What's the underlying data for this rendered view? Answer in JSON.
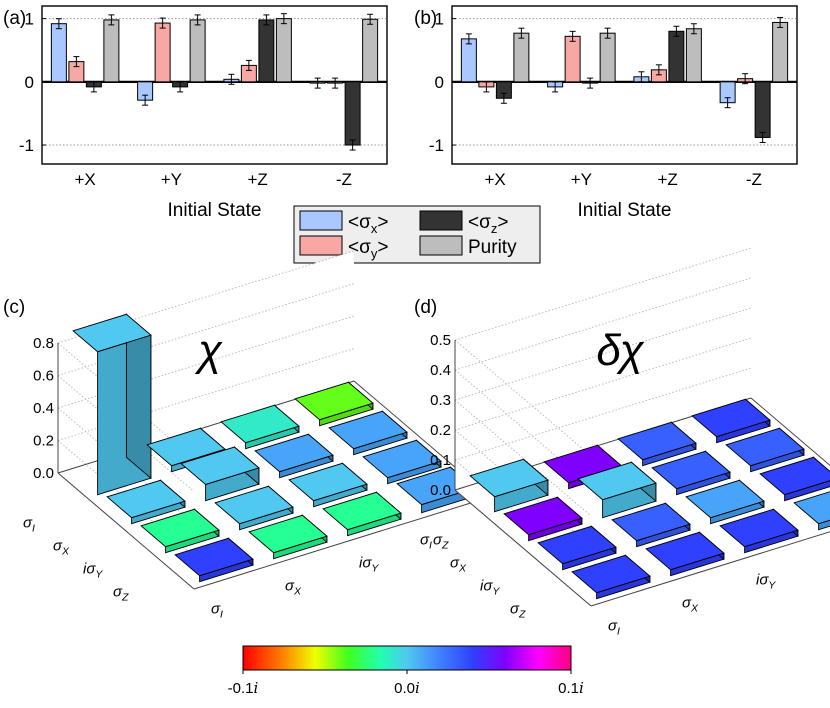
{
  "figure": {
    "panels": {
      "a": "(a)",
      "b": "(b)",
      "c": "(c)",
      "d": "(d)"
    },
    "legend": [
      {
        "key": "sx",
        "label": "<σx>",
        "base": "<σ",
        "sub": "x",
        "tail": ">",
        "color": "#a9c8ff"
      },
      {
        "key": "sz",
        "label": "<σz>",
        "base": "<σ",
        "sub": "z",
        "tail": ">",
        "color": "#333333"
      },
      {
        "key": "sy",
        "label": "<σy>",
        "base": "<σ",
        "sub": "y",
        "tail": ">",
        "color": "#f7a8a4"
      },
      {
        "key": "pur",
        "label": "Purity",
        "base": "Purity",
        "sub": "",
        "tail": "",
        "color": "#bdbdbd"
      }
    ]
  },
  "chart_data": [
    {
      "panel": "a",
      "type": "bar",
      "xlabel": "Initial State",
      "ylabel": "",
      "ylim": [
        -1.3,
        1.2
      ],
      "yticks": [
        "1",
        "0",
        "-1"
      ],
      "categories": [
        "+X",
        "+Y",
        "+Z",
        "-Z"
      ],
      "series": [
        {
          "name": "<σx>",
          "values": [
            0.92,
            -0.29,
            0.04,
            -0.02
          ]
        },
        {
          "name": "<σy>",
          "values": [
            0.32,
            0.93,
            0.26,
            -0.02
          ]
        },
        {
          "name": "<σz>",
          "values": [
            -0.08,
            -0.08,
            0.98,
            -1.0
          ]
        },
        {
          "name": "Purity",
          "values": [
            0.98,
            0.98,
            1.0,
            0.99
          ]
        }
      ]
    },
    {
      "panel": "b",
      "type": "bar",
      "xlabel": "Initial State",
      "ylabel": "",
      "ylim": [
        -1.3,
        1.2
      ],
      "yticks": [
        "1",
        "0",
        "-1"
      ],
      "categories": [
        "+X",
        "+Y",
        "+Z",
        "-Z"
      ],
      "series": [
        {
          "name": "<σx>",
          "values": [
            0.68,
            -0.08,
            0.08,
            -0.33
          ]
        },
        {
          "name": "<σy>",
          "values": [
            -0.08,
            0.72,
            0.19,
            0.05
          ]
        },
        {
          "name": "<σz>",
          "values": [
            -0.26,
            -0.02,
            0.8,
            -0.88
          ]
        },
        {
          "name": "Purity",
          "values": [
            0.77,
            0.77,
            0.84,
            0.94
          ]
        }
      ]
    },
    {
      "panel": "c",
      "type": "bar3d",
      "title": "χ",
      "zticks": [
        "0.8",
        "0.6",
        "0.4",
        "0.2",
        "0.0"
      ],
      "zlim": [
        0,
        0.8
      ],
      "row_labels": [
        "σI",
        "σX",
        "iσY",
        "σZ"
      ],
      "col_labels": [
        "σI",
        "σX",
        "iσY",
        "σZ"
      ],
      "heights": [
        [
          0.88,
          0.0,
          0.0,
          0.0
        ],
        [
          0.0,
          0.1,
          0.0,
          0.0
        ],
        [
          0.0,
          0.0,
          0.0,
          0.0
        ],
        [
          0.0,
          0.0,
          0.0,
          0.05
        ]
      ],
      "imag": [
        [
          0.0,
          0.0,
          -0.01,
          -0.04
        ],
        [
          0.0,
          0.0,
          0.01,
          0.01
        ],
        [
          -0.02,
          0.0,
          0.0,
          0.01
        ],
        [
          0.04,
          -0.02,
          -0.02,
          0.01
        ]
      ]
    },
    {
      "panel": "d",
      "type": "bar3d",
      "title": "δχ",
      "zticks": [
        "0.5",
        "0.4",
        "0.3",
        "0.2",
        "0.1",
        "0.0"
      ],
      "zlim": [
        0,
        0.5
      ],
      "row_labels": [
        "σI",
        "σX",
        "iσY",
        "σZ"
      ],
      "col_labels": [
        "σI",
        "σX",
        "iσY",
        "σZ"
      ],
      "heights": [
        [
          0.05,
          0.0,
          0.0,
          0.0
        ],
        [
          0.0,
          0.06,
          0.0,
          0.0
        ],
        [
          0.0,
          0.0,
          0.0,
          0.0
        ],
        [
          0.0,
          0.0,
          0.0,
          0.0
        ]
      ],
      "imag": [
        [
          0.0,
          0.06,
          0.03,
          0.04
        ],
        [
          0.06,
          0.0,
          0.03,
          0.03
        ],
        [
          0.04,
          0.03,
          0.01,
          0.04
        ],
        [
          0.04,
          0.04,
          0.04,
          0.01
        ]
      ]
    },
    {
      "panel": "colorbar",
      "type": "colorbar",
      "range": [
        -0.1,
        0.1
      ],
      "ticks": [
        "-0.1i",
        "0.0i",
        "0.1i"
      ]
    }
  ]
}
